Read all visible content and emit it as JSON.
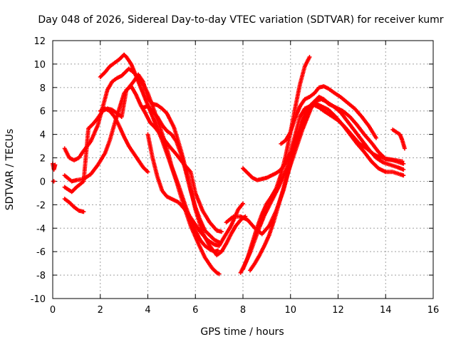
{
  "chart_data": {
    "type": "scatter",
    "title": "Day 048 of 2026, Sidereal Day-to-day VTEC variation (SDTVAR) for receiver kumr",
    "xlabel": "GPS time / hours",
    "ylabel": "SDTVAR / TECUs",
    "xlim": [
      0,
      16
    ],
    "ylim": [
      -10,
      12
    ],
    "xticks": [
      0,
      2,
      4,
      6,
      8,
      10,
      12,
      14,
      16
    ],
    "yticks": [
      -10,
      -8,
      -6,
      -4,
      -2,
      0,
      2,
      4,
      6,
      8,
      10,
      12
    ],
    "grid": true,
    "legend": "none",
    "marker_color": "#ff0000",
    "series": [
      {
        "x": [
          0.0,
          0.05,
          0.1
        ],
        "y": [
          1.5,
          1.0,
          1.4
        ]
      },
      {
        "x": [
          0.02,
          0.05
        ],
        "y": [
          0.0,
          0.0
        ]
      },
      {
        "x": [
          0.5,
          0.7,
          0.9,
          1.1,
          1.3,
          1.6,
          1.9,
          2.1,
          2.3,
          2.5,
          2.7,
          2.9,
          3.0,
          3.2,
          3.4,
          3.6,
          3.8,
          4.0,
          4.2,
          4.5,
          4.8,
          5.0,
          5.3,
          5.6,
          5.9,
          6.2,
          6.4,
          6.6,
          6.8,
          6.95
        ],
        "y": [
          2.8,
          2.0,
          1.8,
          2.0,
          2.6,
          3.4,
          4.8,
          6.3,
          7.8,
          8.5,
          8.8,
          9.0,
          9.2,
          9.6,
          9.3,
          8.8,
          8.3,
          7.5,
          6.4,
          4.7,
          2.8,
          1.3,
          -0.4,
          -2.2,
          -3.8,
          -5.0,
          -5.5,
          -5.8,
          -6.0,
          -5.9
        ]
      },
      {
        "x": [
          2.0,
          2.2,
          2.4,
          2.6,
          2.8,
          3.0,
          3.1,
          3.3,
          3.5,
          3.7,
          3.9,
          4.1,
          4.3,
          4.6,
          4.9,
          5.2,
          5.5,
          5.8,
          6.1,
          6.4,
          6.7,
          6.9,
          7.0
        ],
        "y": [
          8.9,
          9.3,
          9.8,
          10.1,
          10.4,
          10.8,
          10.6,
          10.0,
          9.0,
          8.0,
          7.0,
          6.0,
          5.0,
          3.5,
          1.8,
          0.0,
          -2.0,
          -3.8,
          -5.2,
          -6.5,
          -7.4,
          -7.8,
          -7.9
        ]
      },
      {
        "x": [
          0.5,
          0.8,
          1.0,
          1.3,
          1.6,
          1.9,
          2.2,
          2.4,
          2.6,
          2.8,
          3.0,
          3.2,
          3.4,
          3.6,
          3.8,
          4.0,
          4.2,
          4.4,
          4.6,
          4.8,
          5.1,
          5.4,
          5.7,
          6.0,
          6.3,
          6.6,
          6.9,
          7.1,
          7.3,
          7.5,
          7.7,
          7.9,
          8.1
        ],
        "y": [
          0.5,
          0.0,
          0.1,
          0.2,
          0.6,
          1.4,
          2.4,
          3.5,
          4.9,
          6.2,
          7.5,
          8.0,
          8.5,
          9.1,
          8.5,
          7.1,
          6.6,
          6.5,
          6.2,
          5.8,
          4.6,
          2.6,
          0.2,
          -2.4,
          -4.4,
          -5.5,
          -6.3,
          -6.0,
          -5.3,
          -4.5,
          -3.8,
          -3.3,
          -3.0
        ]
      },
      {
        "x": [
          0.5,
          0.8,
          1.0,
          1.3,
          1.5,
          1.7,
          1.9,
          2.1,
          2.3,
          2.5,
          2.7,
          2.9,
          3.1,
          3.3,
          3.5,
          3.7,
          3.9,
          4.1,
          4.3,
          4.6,
          4.9,
          5.2,
          5.5,
          5.8,
          6.0,
          6.3,
          6.6,
          6.9,
          7.1
        ],
        "y": [
          -0.5,
          -0.9,
          -0.5,
          0.0,
          4.5,
          4.9,
          5.4,
          6.0,
          6.2,
          6.1,
          5.8,
          5.5,
          7.8,
          8.1,
          7.4,
          6.5,
          5.8,
          5.0,
          4.6,
          3.8,
          3.0,
          2.3,
          1.5,
          0.8,
          -1.0,
          -2.5,
          -3.5,
          -4.2,
          -4.3
        ]
      },
      {
        "x": [
          0.5,
          0.7,
          0.9,
          1.1,
          1.3
        ],
        "y": [
          -1.5,
          -1.8,
          -2.2,
          -2.5,
          -2.6
        ]
      },
      {
        "x": [
          2.0,
          2.2,
          2.4,
          2.6,
          2.8,
          3.0,
          3.2,
          3.4,
          3.6,
          3.8,
          4.0
        ],
        "y": [
          6.0,
          6.2,
          6.0,
          5.5,
          4.7,
          3.8,
          3.0,
          2.4,
          1.8,
          1.2,
          0.8
        ]
      },
      {
        "x": [
          3.8,
          4.0,
          4.2,
          4.4,
          4.6,
          4.8,
          5.0,
          5.2,
          5.4,
          5.6,
          5.8,
          6.0,
          6.2,
          6.4,
          6.6,
          6.8,
          7.0
        ],
        "y": [
          6.3,
          6.4,
          6.0,
          5.5,
          4.8,
          4.3,
          4.0,
          3.4,
          2.3,
          0.8,
          -0.8,
          -2.2,
          -3.3,
          -4.2,
          -4.6,
          -5.0,
          -5.2
        ]
      },
      {
        "x": [
          4.0,
          4.2,
          4.4,
          4.6,
          4.8,
          5.0,
          5.3,
          5.6,
          5.9,
          6.2,
          6.5,
          6.8,
          7.0,
          7.2,
          7.5,
          7.8,
          8.0
        ],
        "y": [
          4.0,
          2.0,
          0.4,
          -0.8,
          -1.3,
          -1.5,
          -1.8,
          -2.5,
          -3.4,
          -4.3,
          -5.0,
          -5.4,
          -5.5,
          -4.8,
          -3.8,
          -2.4,
          -1.9
        ]
      },
      {
        "x": [
          7.9,
          8.1,
          8.3,
          8.5,
          8.7,
          8.9,
          9.1,
          9.3,
          9.5,
          9.7,
          9.9,
          10.0,
          10.2,
          10.4,
          10.6,
          10.8,
          11.0,
          11.3,
          11.6,
          11.9,
          12.2,
          12.5,
          12.8,
          13.1,
          13.4,
          13.7,
          14.0,
          14.3,
          14.6,
          14.75
        ],
        "y": [
          -7.8,
          -7.0,
          -6.1,
          -5.0,
          -3.9,
          -2.9,
          -2.1,
          -1.3,
          -0.5,
          0.4,
          1.4,
          2.2,
          3.3,
          4.4,
          5.5,
          6.3,
          6.7,
          6.4,
          6.1,
          5.5,
          4.8,
          4.0,
          3.2,
          2.5,
          1.7,
          1.1,
          0.8,
          0.8,
          0.6,
          0.5
        ]
      },
      {
        "x": [
          8.0,
          8.2,
          8.4,
          8.6,
          8.8,
          9.0,
          9.2,
          9.4,
          9.6,
          9.8,
          10.0,
          10.2,
          10.4,
          10.6,
          10.8
        ],
        "y": [
          -7.5,
          -6.5,
          -5.2,
          -3.9,
          -2.8,
          -1.9,
          -1.3,
          -0.6,
          0.6,
          2.2,
          4.2,
          6.3,
          8.3,
          9.8,
          10.6
        ]
      },
      {
        "x": [
          8.3,
          8.5,
          8.7,
          8.9,
          9.1,
          9.3,
          9.5,
          9.7,
          9.9,
          10.1,
          10.3,
          10.5,
          10.7,
          10.9,
          11.1,
          11.3,
          11.5,
          11.8,
          12.1,
          12.4,
          12.7,
          13.0,
          13.3,
          13.6,
          13.9,
          14.2,
          14.5,
          14.75
        ],
        "y": [
          -7.6,
          -7.0,
          -6.3,
          -5.5,
          -4.6,
          -3.4,
          -2.0,
          -0.6,
          0.8,
          2.0,
          3.2,
          4.4,
          5.4,
          6.4,
          6.9,
          7.0,
          6.8,
          6.4,
          5.9,
          5.1,
          4.3,
          3.5,
          2.7,
          2.0,
          1.6,
          1.4,
          1.2,
          1.0
        ]
      },
      {
        "x": [
          8.0,
          8.2,
          8.4,
          8.6,
          8.8,
          9.0,
          9.2,
          9.4,
          9.6,
          9.8,
          10.0,
          10.2,
          10.4,
          10.6,
          10.8,
          11.0,
          11.2,
          11.4,
          11.6,
          11.9,
          12.2,
          12.5,
          12.8,
          13.1,
          13.4,
          13.7,
          14.0,
          14.3,
          14.6,
          14.75
        ],
        "y": [
          1.1,
          0.7,
          0.3,
          0.1,
          0.2,
          0.3,
          0.5,
          0.7,
          1.0,
          1.6,
          2.5,
          4.0,
          5.5,
          6.2,
          6.4,
          6.8,
          7.2,
          7.0,
          6.6,
          6.3,
          6.0,
          5.5,
          4.8,
          4.0,
          3.3,
          2.5,
          1.9,
          1.8,
          1.6,
          1.5
        ]
      },
      {
        "x": [
          7.3,
          7.6,
          7.9,
          8.2,
          8.5,
          8.8,
          9.1,
          9.4,
          9.7,
          10.0,
          10.2,
          10.4,
          10.6,
          10.8,
          11.0,
          11.2,
          11.4,
          11.7,
          12.0,
          12.3,
          12.6,
          12.9,
          13.2,
          13.5,
          13.8,
          14.1,
          14.4,
          14.7
        ],
        "y": [
          -3.5,
          -3.0,
          -3.0,
          -3.3,
          -4.0,
          -4.5,
          -3.8,
          -2.5,
          -0.8,
          1.5,
          3.0,
          4.5,
          5.8,
          6.2,
          6.5,
          6.3,
          6.0,
          5.6,
          5.2,
          4.6,
          3.9,
          3.2,
          2.8,
          2.3,
          2.0,
          1.9,
          1.8,
          1.7
        ]
      },
      {
        "x": [
          9.6,
          9.8,
          10.0,
          10.2,
          10.4,
          10.6,
          10.8,
          11.0,
          11.2,
          11.4,
          11.6,
          11.8,
          12.1,
          12.4,
          12.7,
          13.0,
          13.3,
          13.6
        ],
        "y": [
          3.2,
          3.5,
          4.2,
          5.4,
          6.4,
          7.0,
          7.2,
          7.5,
          8.0,
          8.1,
          7.9,
          7.6,
          7.2,
          6.7,
          6.2,
          5.5,
          4.7,
          3.7
        ]
      },
      {
        "x": [
          14.3,
          14.45,
          14.6,
          14.7,
          14.8
        ],
        "y": [
          4.4,
          4.2,
          4.0,
          3.5,
          2.8
        ]
      }
    ]
  }
}
